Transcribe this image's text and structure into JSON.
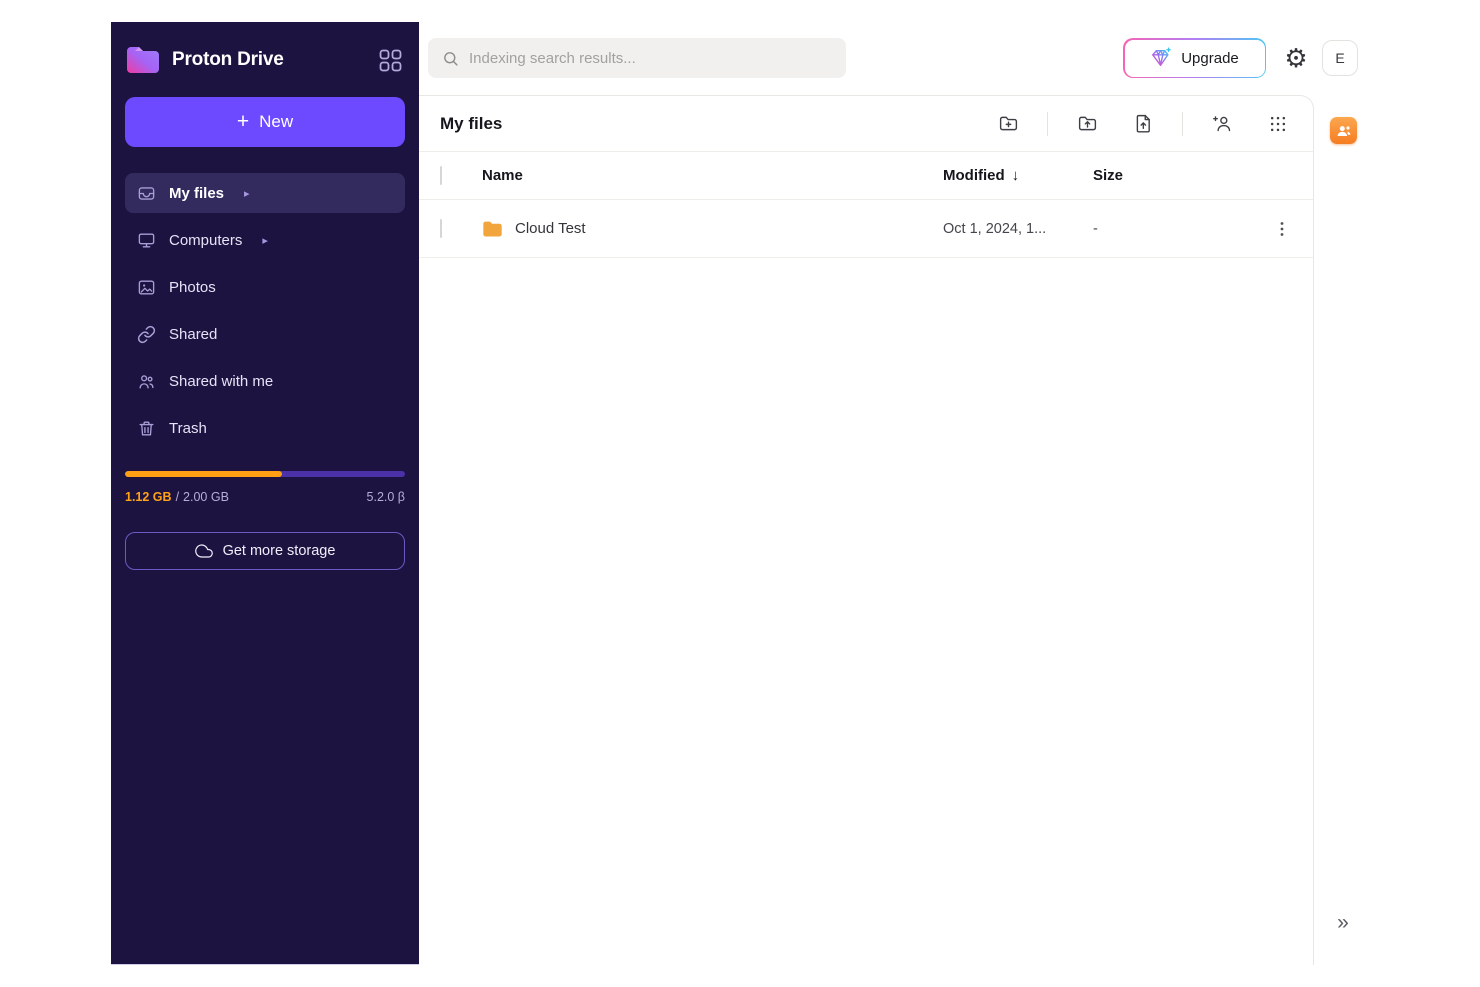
{
  "brand": {
    "name": "Proton Drive"
  },
  "header": {
    "search": {
      "placeholder": "Indexing search results..."
    },
    "upgrade_button": {
      "label": "Upgrade"
    },
    "account": {
      "initial": "E"
    },
    "gear_glyph": "⚙"
  },
  "sidebar": {
    "new_button": {
      "plus": "+",
      "label": "New"
    },
    "chevron_glyph": "▸",
    "items": [
      {
        "label": "My files",
        "icon": "inbox-icon",
        "active": true,
        "has_chevron": true
      },
      {
        "label": "Computers",
        "icon": "monitor-icon",
        "active": false,
        "has_chevron": true
      },
      {
        "label": "Photos",
        "icon": "photos-icon",
        "active": false,
        "has_chevron": false
      },
      {
        "label": "Shared",
        "icon": "link-icon",
        "active": false,
        "has_chevron": false
      },
      {
        "label": "Shared with me",
        "icon": "users-icon",
        "active": false,
        "has_chevron": false
      },
      {
        "label": "Trash",
        "icon": "trash-icon",
        "active": false,
        "has_chevron": false
      }
    ],
    "storage": {
      "used": "1.12 GB",
      "divider": "/",
      "total": "2.00 GB",
      "percent_used": 56,
      "version": "5.2.0 β",
      "cta_label": "Get more storage"
    }
  },
  "main": {
    "title": "My files",
    "toolbar_icons": [
      "new-folder",
      "upload-folder",
      "upload-file",
      "share-user",
      "grid-view"
    ],
    "table": {
      "columns": {
        "name": "Name",
        "modified": "Modified",
        "size": "Size"
      },
      "sort_indicator": "↓",
      "rows": [
        {
          "type": "folder",
          "name": "Cloud Test",
          "modified": "Oct 1, 2024, 1...",
          "size": "-",
          "menu_glyph": "⋮"
        }
      ]
    }
  },
  "right_rail": {
    "expand_glyph": "»"
  },
  "colors": {
    "accent": "#6d4aff",
    "sidebar_bg": "#1c1340",
    "sidebar_active_bg": "#332a5e",
    "storage_used_orange": "#ffa014",
    "storage_track_purple": "#4a31a8",
    "folder_orange": "#f2a53d",
    "contacts_widget_orange": "#f57d22"
  }
}
